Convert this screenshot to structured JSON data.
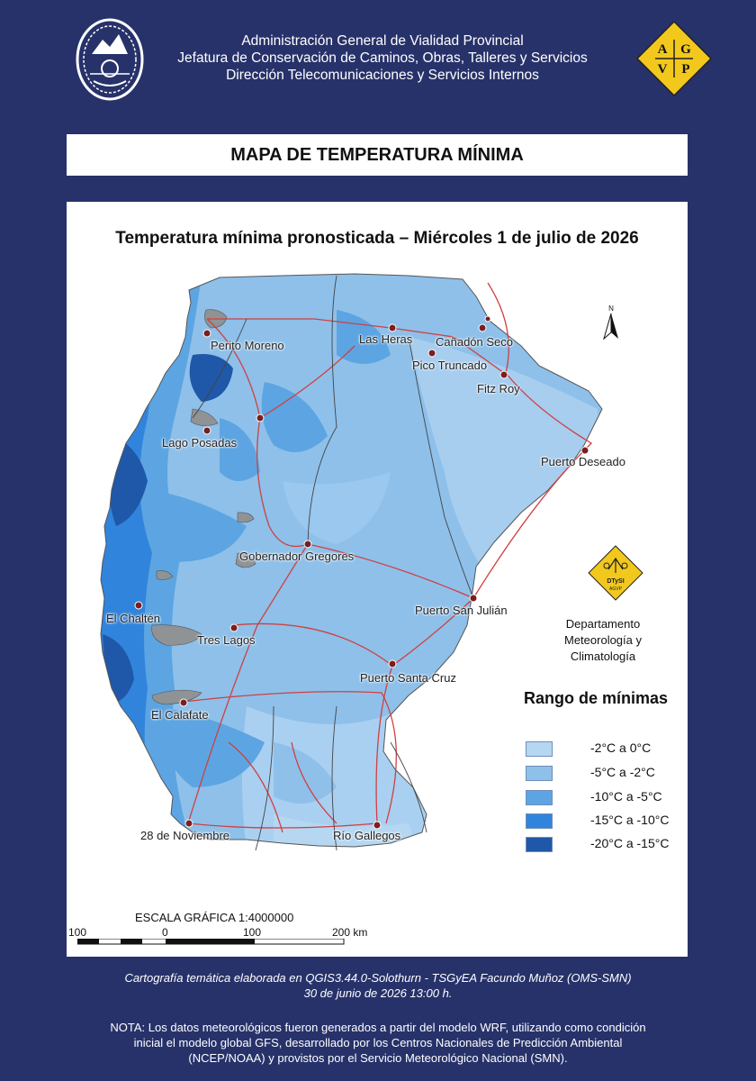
{
  "header": {
    "lines": [
      "Administración General de Vialidad Provincial",
      "Jefatura de Conservación de Caminos, Obras, Talleres y Servicios",
      "Dirección Telecomunicaciones y Servicios Internos"
    ],
    "logo_letters": [
      "A",
      "G",
      "V",
      "P"
    ]
  },
  "title": "MAPA DE TEMPERATURA MÍNIMA",
  "map": {
    "subtitle": "Temperatura mínima pronosticada – Miércoles 1 de julio de 2026",
    "north_label": "N",
    "cities": [
      "Perito Moreno",
      "Las Heras",
      "Cañadón Seco",
      "Pico Truncado",
      "Fitz Roy",
      "Lago Posadas",
      "Puerto Deseado",
      "Gobernador Gregores",
      "Puerto San Julián",
      "El Chaltén",
      "Tres Lagos",
      "Puerto Santa Cruz",
      "El Calafate",
      "28 de Noviembre",
      "Río Gallegos"
    ]
  },
  "department": {
    "logo_text": [
      "DTySI",
      "AGVP"
    ],
    "lines": [
      "Departamento",
      "Meteorología y Climatología"
    ]
  },
  "legend": {
    "title": "Rango  de mínimas",
    "items": [
      {
        "label": "-2°C a 0°C",
        "color": "#b6d7f2"
      },
      {
        "label": "-5°C a -2°C",
        "color": "#8ec0ea"
      },
      {
        "label": "-10°C a -5°C",
        "color": "#5ca5e2"
      },
      {
        "label": "-15°C a -10°C",
        "color": "#3184dc"
      },
      {
        "label": "-20°C a -15°C",
        "color": "#1f58a8"
      }
    ]
  },
  "scale": {
    "title": "ESCALA GRÁFICA 1:4000000",
    "labels": [
      "100",
      "0",
      "100",
      "200 km"
    ]
  },
  "footer": {
    "credit": "Cartografía temática elaborada en QGIS3.44.0-Solothurn - TSGyEA Facundo Muñoz (OMS-SMN)",
    "date": "30 de junio de 2026 13:00 h.",
    "note_lines": [
      "NOTA: Los datos meteorológicos fueron generados a partir del modelo WRF, utilizando como condición",
      "inicial el modelo global GFS, desarrollado por los Centros Nacionales de Predicción Ambiental",
      "(NCEP/NOAA) y provistos por el Servicio Meteorológico Nacional (SMN)."
    ]
  }
}
